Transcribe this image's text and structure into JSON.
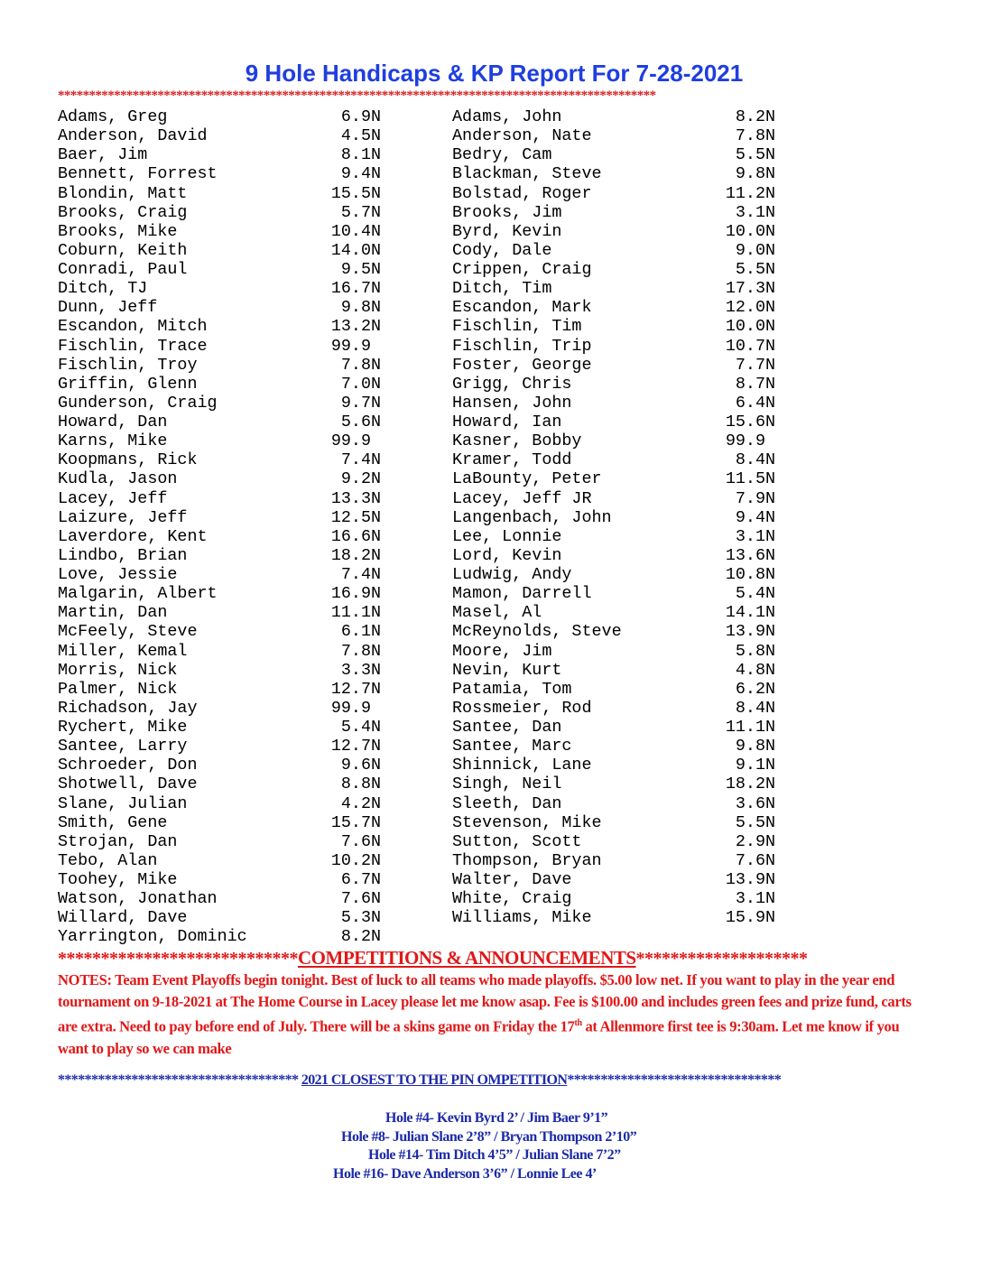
{
  "title": "9 Hole Handicaps & KP Report For 7-28-2021",
  "star_rule": "************************************************************************************************",
  "left_column": [
    {
      "name": "Adams, Greg",
      "hcp": "6.9",
      "flag": "N"
    },
    {
      "name": "Anderson, David",
      "hcp": "4.5",
      "flag": "N"
    },
    {
      "name": "Baer, Jim",
      "hcp": "8.1",
      "flag": "N"
    },
    {
      "name": "Bennett, Forrest",
      "hcp": "9.4",
      "flag": "N"
    },
    {
      "name": "Blondin, Matt",
      "hcp": "15.5",
      "flag": "N"
    },
    {
      "name": "Brooks, Craig",
      "hcp": "5.7",
      "flag": "N"
    },
    {
      "name": "Brooks, Mike",
      "hcp": "10.4",
      "flag": "N"
    },
    {
      "name": "Coburn, Keith",
      "hcp": "14.0",
      "flag": "N"
    },
    {
      "name": "Conradi, Paul",
      "hcp": "9.5",
      "flag": "N"
    },
    {
      "name": "Ditch, TJ",
      "hcp": "16.7",
      "flag": "N"
    },
    {
      "name": "Dunn, Jeff",
      "hcp": "9.8",
      "flag": "N"
    },
    {
      "name": "Escandon, Mitch",
      "hcp": "13.2",
      "flag": "N"
    },
    {
      "name": "Fischlin, Trace",
      "hcp": "99.9",
      "flag": ""
    },
    {
      "name": "Fischlin, Troy",
      "hcp": "7.8",
      "flag": "N"
    },
    {
      "name": "Griffin, Glenn",
      "hcp": "7.0",
      "flag": "N"
    },
    {
      "name": "Gunderson, Craig",
      "hcp": "9.7",
      "flag": "N"
    },
    {
      "name": "Howard, Dan",
      "hcp": "5.6",
      "flag": "N"
    },
    {
      "name": "Karns, Mike",
      "hcp": "99.9",
      "flag": ""
    },
    {
      "name": "Koopmans, Rick",
      "hcp": "7.4",
      "flag": "N"
    },
    {
      "name": "Kudla, Jason",
      "hcp": "9.2",
      "flag": "N"
    },
    {
      "name": "Lacey, Jeff",
      "hcp": "13.3",
      "flag": "N"
    },
    {
      "name": "Laizure, Jeff",
      "hcp": "12.5",
      "flag": "N"
    },
    {
      "name": "Laverdore, Kent",
      "hcp": "16.6",
      "flag": "N"
    },
    {
      "name": "Lindbo, Brian",
      "hcp": "18.2",
      "flag": "N"
    },
    {
      "name": "Love, Jessie",
      "hcp": "7.4",
      "flag": "N"
    },
    {
      "name": "Malgarin, Albert",
      "hcp": "16.9",
      "flag": "N"
    },
    {
      "name": "Martin, Dan",
      "hcp": "11.1",
      "flag": "N"
    },
    {
      "name": "McFeely, Steve",
      "hcp": "6.1",
      "flag": "N"
    },
    {
      "name": "Miller, Kemal",
      "hcp": "7.8",
      "flag": "N"
    },
    {
      "name": "Morris, Nick",
      "hcp": "3.3",
      "flag": "N"
    },
    {
      "name": "Palmer, Nick",
      "hcp": "12.7",
      "flag": "N"
    },
    {
      "name": "Richadson, Jay",
      "hcp": "99.9",
      "flag": ""
    },
    {
      "name": "Rychert, Mike",
      "hcp": "5.4",
      "flag": "N"
    },
    {
      "name": "Santee, Larry",
      "hcp": "12.7",
      "flag": "N"
    },
    {
      "name": "Schroeder, Don",
      "hcp": "9.6",
      "flag": "N"
    },
    {
      "name": "Shotwell, Dave",
      "hcp": "8.8",
      "flag": "N"
    },
    {
      "name": "Slane, Julian",
      "hcp": "4.2",
      "flag": "N"
    },
    {
      "name": "Smith, Gene",
      "hcp": "15.7",
      "flag": "N"
    },
    {
      "name": "Strojan, Dan",
      "hcp": "7.6",
      "flag": "N"
    },
    {
      "name": "Tebo, Alan",
      "hcp": "10.2",
      "flag": "N"
    },
    {
      "name": "Toohey, Mike",
      "hcp": "6.7",
      "flag": "N"
    },
    {
      "name": "Watson, Jonathan",
      "hcp": "7.6",
      "flag": "N"
    },
    {
      "name": "Willard, Dave",
      "hcp": "5.3",
      "flag": "N"
    },
    {
      "name": "Yarrington, Dominic",
      "hcp": "8.2",
      "flag": "N"
    }
  ],
  "right_column": [
    {
      "name": "Adams, John",
      "hcp": "8.2",
      "flag": "N"
    },
    {
      "name": "Anderson, Nate",
      "hcp": "7.8",
      "flag": "N"
    },
    {
      "name": "Bedry, Cam",
      "hcp": "5.5",
      "flag": "N"
    },
    {
      "name": "Blackman, Steve",
      "hcp": "9.8",
      "flag": "N"
    },
    {
      "name": "Bolstad, Roger",
      "hcp": "11.2",
      "flag": "N"
    },
    {
      "name": "Brooks, Jim",
      "hcp": "3.1",
      "flag": "N"
    },
    {
      "name": "Byrd, Kevin",
      "hcp": "10.0",
      "flag": "N"
    },
    {
      "name": "Cody, Dale",
      "hcp": "9.0",
      "flag": "N"
    },
    {
      "name": "Crippen, Craig",
      "hcp": "5.5",
      "flag": "N"
    },
    {
      "name": "Ditch, Tim",
      "hcp": "17.3",
      "flag": "N"
    },
    {
      "name": "Escandon, Mark",
      "hcp": "12.0",
      "flag": "N"
    },
    {
      "name": "Fischlin, Tim",
      "hcp": "10.0",
      "flag": "N"
    },
    {
      "name": "Fischlin, Trip",
      "hcp": "10.7",
      "flag": "N"
    },
    {
      "name": "Foster, George",
      "hcp": "7.7",
      "flag": "N"
    },
    {
      "name": "Grigg, Chris",
      "hcp": "8.7",
      "flag": "N"
    },
    {
      "name": "Hansen, John",
      "hcp": "6.4",
      "flag": "N"
    },
    {
      "name": "Howard, Ian",
      "hcp": "15.6",
      "flag": "N"
    },
    {
      "name": "Kasner, Bobby",
      "hcp": "99.9",
      "flag": ""
    },
    {
      "name": "Kramer, Todd",
      "hcp": "8.4",
      "flag": "N"
    },
    {
      "name": "LaBounty, Peter",
      "hcp": "11.5",
      "flag": "N"
    },
    {
      "name": "Lacey, Jeff JR",
      "hcp": "7.9",
      "flag": "N"
    },
    {
      "name": "Langenbach, John",
      "hcp": "9.4",
      "flag": "N"
    },
    {
      "name": "Lee, Lonnie",
      "hcp": "3.1",
      "flag": "N"
    },
    {
      "name": "Lord, Kevin",
      "hcp": "13.6",
      "flag": "N"
    },
    {
      "name": "Ludwig, Andy",
      "hcp": "10.8",
      "flag": "N"
    },
    {
      "name": "Mamon, Darrell",
      "hcp": "5.4",
      "flag": "N"
    },
    {
      "name": "Masel, Al",
      "hcp": "14.1",
      "flag": "N"
    },
    {
      "name": "McReynolds, Steve",
      "hcp": "13.9",
      "flag": "N"
    },
    {
      "name": "Moore, Jim",
      "hcp": "5.8",
      "flag": "N"
    },
    {
      "name": "Nevin, Kurt",
      "hcp": "4.8",
      "flag": "N"
    },
    {
      "name": "Patamia, Tom",
      "hcp": "6.2",
      "flag": "N"
    },
    {
      "name": "Rossmeier, Rod",
      "hcp": "8.4",
      "flag": "N"
    },
    {
      "name": "Santee, Dan",
      "hcp": "11.1",
      "flag": "N"
    },
    {
      "name": "Santee, Marc",
      "hcp": "9.8",
      "flag": "N"
    },
    {
      "name": "Shinnick, Lane",
      "hcp": "9.1",
      "flag": "N"
    },
    {
      "name": "Singh, Neil",
      "hcp": "18.2",
      "flag": "N"
    },
    {
      "name": "Sleeth, Dan",
      "hcp": "3.6",
      "flag": "N"
    },
    {
      "name": "Stevenson, Mike",
      "hcp": "5.5",
      "flag": "N"
    },
    {
      "name": "Sutton, Scott",
      "hcp": "2.9",
      "flag": "N"
    },
    {
      "name": "Thompson, Bryan",
      "hcp": "7.6",
      "flag": "N"
    },
    {
      "name": "Walter, Dave",
      "hcp": "13.9",
      "flag": "N"
    },
    {
      "name": "White, Craig",
      "hcp": "3.1",
      "flag": "N"
    },
    {
      "name": "Williams, Mike",
      "hcp": "15.9",
      "flag": "N"
    }
  ],
  "competitions": {
    "stars_before": "****************************",
    "heading": "COMPETITIONS & ANNOUNCEMENTS",
    "stars_after": "********************",
    "notes_before_sup": "NOTES:  Team Event Playoffs begin tonight. Best of luck to all teams who made playoffs.  $5.00 low net.   If you want to play in the year end tournament on 9-18-2021 at The Home Course in Lacey please let me know asap.  Fee is $100.00 and includes green fees and prize fund, carts are extra.  Need to pay before end of July.  There will be a skins game on Friday the 17",
    "notes_sup": "th",
    "notes_after_sup": " at Allenmore first tee is 9:30am.  Let me know if you want to play so we can make"
  },
  "closest_to_pin": {
    "stars_before": "************************************ ",
    "heading": "2021 CLOSEST TO THE PIN OMPETITION",
    "stars_after": "********************************",
    "holes": [
      "Hole #4-  Kevin Byrd 2’ / Jim Baer 9’1”",
      "Hole #8-  Julian Slane 2’8” / Bryan Thompson 2’10”",
      "Hole #14- Tim Ditch 4’5” / Julian Slane 7’2”",
      "Hole #16- Dave Anderson 3’6” / Lonnie Lee 4’"
    ]
  },
  "colors": {
    "title_blue": "#1f3ee0",
    "announce_red": "#e01818",
    "ctp_blue": "#1c2aa8"
  }
}
